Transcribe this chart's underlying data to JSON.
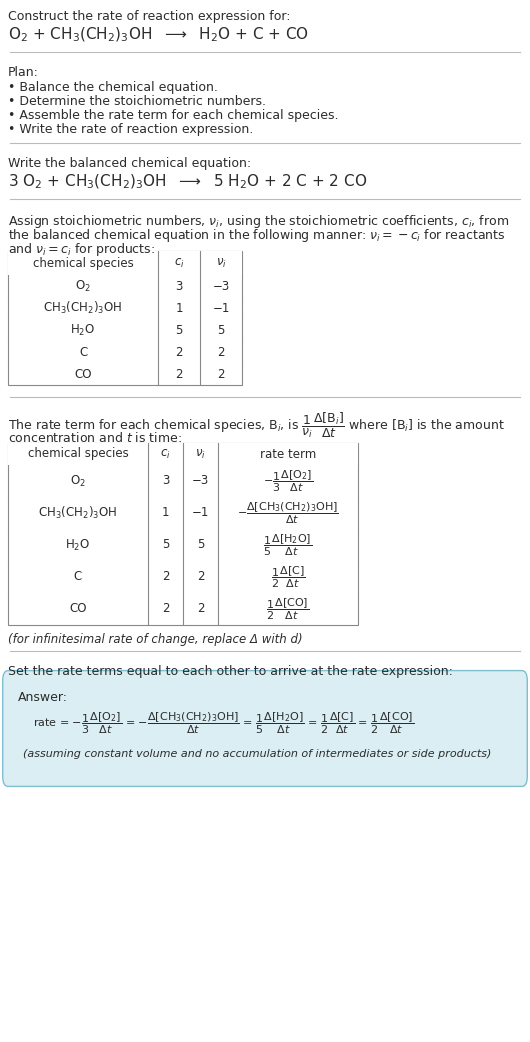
{
  "bg_color": "#ffffff",
  "text_color": "#2c2c2c",
  "table_line_color": "#888888",
  "answer_box_color": "#daeef3",
  "answer_box_border": "#7fbfcf"
}
